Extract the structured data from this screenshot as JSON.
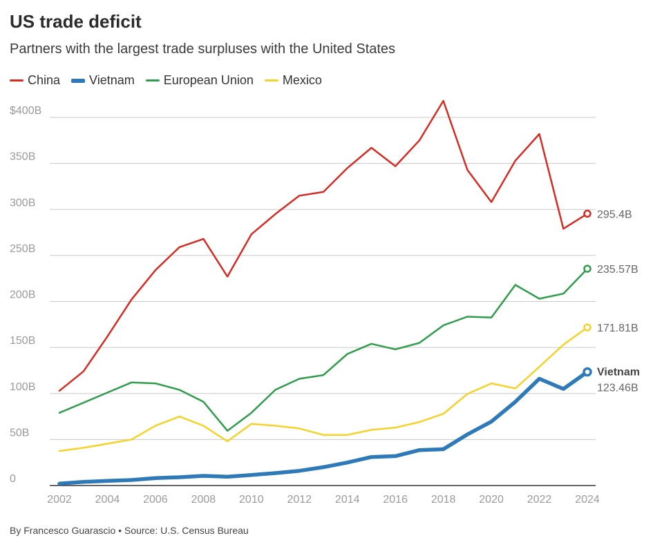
{
  "header": {
    "title": "US trade deficit",
    "subtitle": "Partners with the largest trade surpluses with the United States"
  },
  "footer": {
    "credit": "By Francesco Guarascio • Source: U.S. Census Bureau"
  },
  "chart_data": {
    "type": "line",
    "title": "US trade deficit",
    "subtitle": "Partners with the largest trade surpluses with the United States",
    "xlabel": "",
    "ylabel": "",
    "x": [
      2002,
      2003,
      2004,
      2005,
      2006,
      2007,
      2008,
      2009,
      2010,
      2011,
      2012,
      2013,
      2014,
      2015,
      2016,
      2017,
      2018,
      2019,
      2020,
      2021,
      2022,
      2023,
      2024
    ],
    "xticks": [
      "2002",
      "2004",
      "2006",
      "2008",
      "2010",
      "2012",
      "2014",
      "2016",
      "2018",
      "2020",
      "2022",
      "2024"
    ],
    "xlim": [
      2002,
      2024
    ],
    "ylim": [
      0,
      400
    ],
    "yticks": [
      0,
      50,
      100,
      150,
      200,
      250,
      300,
      350,
      400
    ],
    "ytick_labels": [
      "0",
      "50B",
      "100B",
      "150B",
      "200B",
      "250B",
      "300B",
      "350B",
      "$400B"
    ],
    "grid": "horizontal",
    "legend_position": "top-left",
    "series": [
      {
        "name": "China",
        "color": "#d62a22",
        "weight": "thin",
        "values": [
          103,
          124,
          162,
          202,
          234,
          259,
          268,
          227,
          273,
          295,
          315,
          319,
          345,
          367,
          347,
          375,
          418,
          343,
          308,
          353,
          382,
          279,
          295.4
        ],
        "end_label": "295.4B"
      },
      {
        "name": "Vietnam",
        "color": "#2e7ab8",
        "weight": "thick",
        "values": [
          2,
          4,
          5,
          6,
          8,
          9,
          10.5,
          9.5,
          11.5,
          13.5,
          16,
          20,
          25,
          31,
          32,
          38.5,
          39.5,
          55.5,
          69.5,
          91,
          116,
          105,
          123.46
        ],
        "end_label": "123.46B",
        "end_name": "Vietnam"
      },
      {
        "name": "European Union",
        "color": "#2e9c4a",
        "weight": "thin",
        "values": [
          79,
          90,
          101,
          112,
          111,
          104,
          91,
          59.5,
          79,
          104,
          116,
          120,
          143,
          154,
          148,
          155,
          174,
          183.5,
          182.5,
          218,
          203,
          208.5,
          235.57
        ],
        "end_label": "235.57B"
      },
      {
        "name": "Mexico",
        "color": "#f5d228",
        "weight": "thin",
        "values": [
          37.5,
          41,
          45.5,
          50,
          65,
          75,
          65,
          48,
          67,
          65,
          62,
          55,
          55,
          60.5,
          63,
          69,
          78,
          99.5,
          111,
          105.5,
          129,
          153,
          171.81
        ],
        "end_label": "171.81B"
      }
    ]
  }
}
